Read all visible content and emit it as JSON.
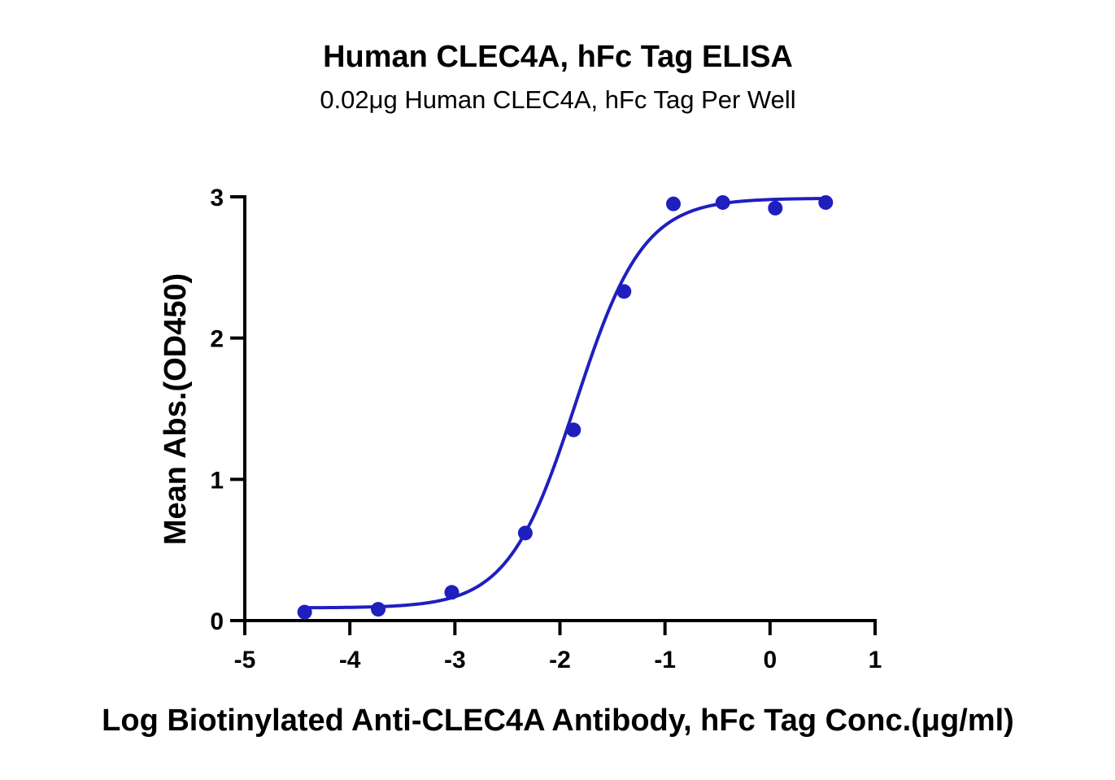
{
  "chart_data": {
    "type": "scatter",
    "title": "Human CLEC4A, hFc Tag ELISA",
    "subtitle": "0.02μg Human CLEC4A, hFc Tag Per Well",
    "xlabel": "Log Biotinylated Anti-CLEC4A Antibody, hFc Tag Conc.(μg/ml)",
    "ylabel": "Mean Abs.(OD450)",
    "xlim": [
      -5,
      1
    ],
    "ylim": [
      0,
      3
    ],
    "xticks": [
      -5,
      -4,
      -3,
      -2,
      -1,
      0,
      1
    ],
    "xtick_labels": [
      "-5",
      "-4",
      "-3",
      "-2",
      "-1",
      "0",
      "1"
    ],
    "yticks": [
      0,
      1,
      2,
      3
    ],
    "ytick_labels": [
      "0",
      "1",
      "2",
      "3"
    ],
    "grid": false,
    "color": "#1f1fbf",
    "series": [
      {
        "x": [
          -4.43,
          -3.73,
          -3.03,
          -2.33,
          -1.87,
          -1.39,
          -0.92,
          -0.45,
          0.05,
          0.53
        ],
        "y": [
          0.06,
          0.08,
          0.2,
          0.62,
          1.35,
          2.33,
          2.95,
          2.96,
          2.92,
          2.96
        ],
        "fit": {
          "model": "4PL",
          "bottom": 0.09,
          "top": 2.99,
          "logEC50": -1.85,
          "hill": 1.35,
          "x_range": [
            -4.43,
            0.53
          ]
        }
      }
    ]
  }
}
